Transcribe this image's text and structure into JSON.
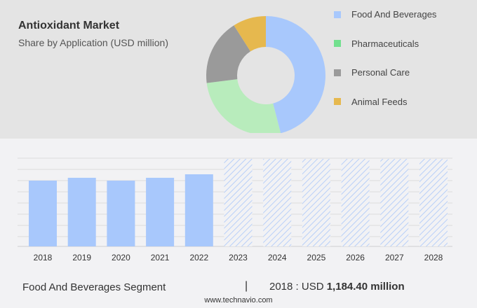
{
  "chart_data": [
    {
      "type": "pie",
      "title": "Antioxidant Market",
      "subtitle": "Share by Application (USD million)",
      "legend_placement": "right",
      "categories": [
        "Food And Beverages",
        "Pharmaceuticals",
        "Personal Care",
        "Animal Feeds"
      ],
      "values": [
        46,
        27,
        18,
        9
      ],
      "colors": [
        "#a8c8fc",
        "#b8ecbc",
        "#9a9a9a",
        "#e6b84e"
      ],
      "legend_colors": [
        "#a8c8fc",
        "#72e08e",
        "#9a9a9a",
        "#e6b84e"
      ],
      "donut": true
    },
    {
      "type": "bar",
      "categories": [
        "2018",
        "2019",
        "2020",
        "2021",
        "2022",
        "2023",
        "2024",
        "2025",
        "2026",
        "2027",
        "2028"
      ],
      "values": [
        1184.4,
        1235,
        1184,
        1235,
        1298,
        null,
        null,
        null,
        null,
        null,
        null
      ],
      "forecast": [
        "2023",
        "2024",
        "2025",
        "2026",
        "2027",
        "2028"
      ],
      "color": "#a8c8fc",
      "grid": true
    }
  ],
  "footer": {
    "segment": "Food And Beverages Segment",
    "separator": "|",
    "year_label": "2018 : USD ",
    "value": "1,184.40 million",
    "site": "www.technavio.com"
  }
}
